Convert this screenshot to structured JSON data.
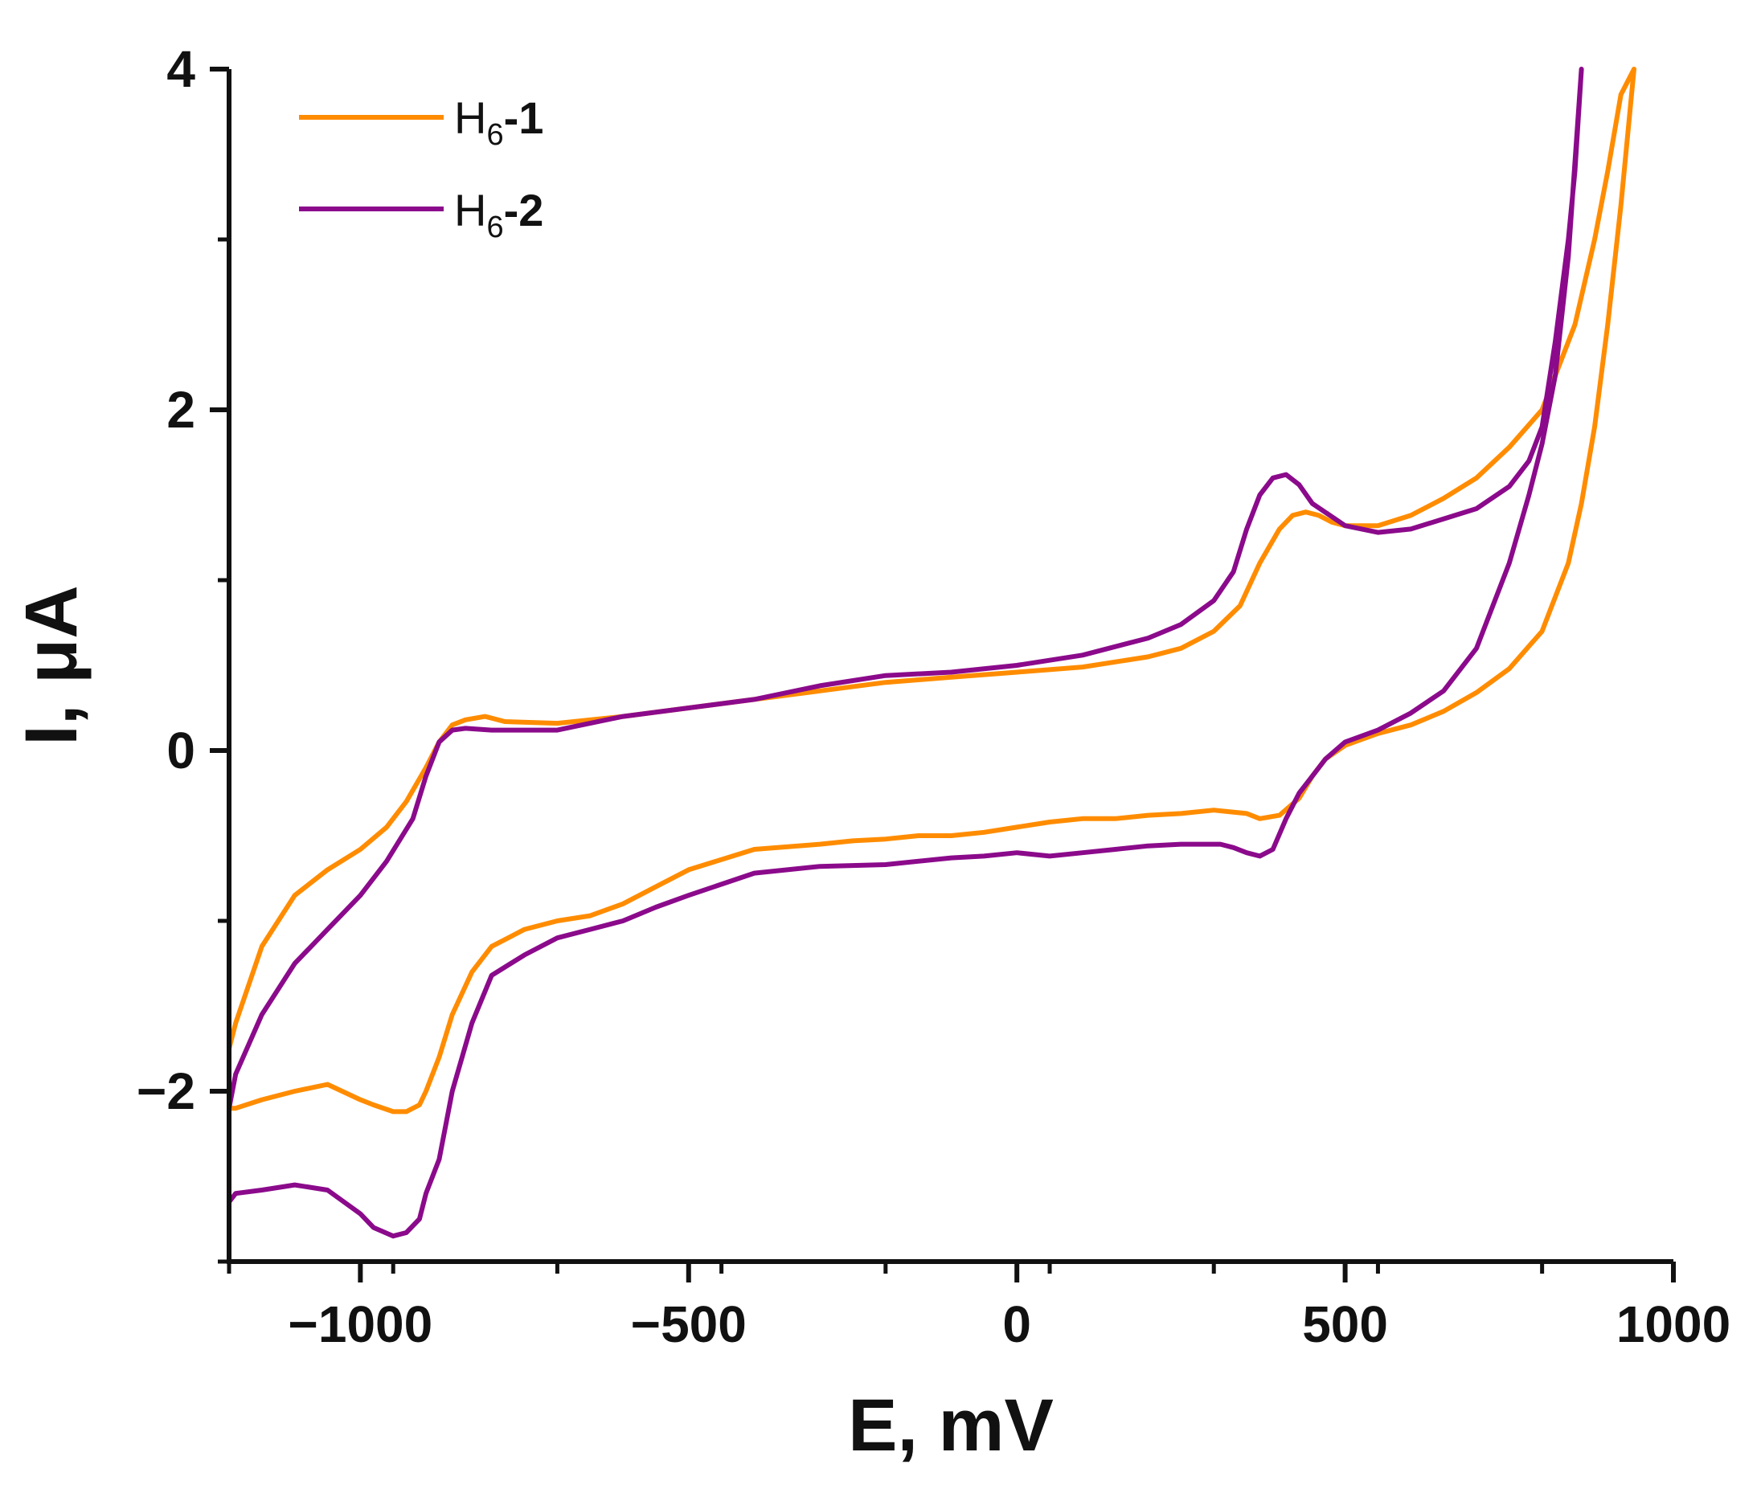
{
  "chart_data": {
    "type": "line",
    "xlabel": "E, mV",
    "ylabel_prefix": "I, ",
    "ylabel_unit": "μA",
    "xlim": [
      -1200,
      1000
    ],
    "ylim": [
      -3,
      4
    ],
    "xticks": [
      -1000,
      -500,
      0,
      500,
      1000
    ],
    "xtick_labels": [
      "−1000",
      "−500",
      "0",
      "500",
      "1000"
    ],
    "yticks": [
      -2,
      0,
      2,
      4
    ],
    "ytick_labels": [
      "−2",
      "0",
      "2",
      "4"
    ],
    "grid": false,
    "legend_position": "top-left",
    "series": [
      {
        "name": "H6-1",
        "label_main": "H",
        "label_sub": "6",
        "label_suffix": "-1",
        "color": "#FF8C00",
        "x": [
          -1200,
          -1190,
          -1150,
          -1100,
          -1050,
          -1000,
          -960,
          -930,
          -900,
          -880,
          -860,
          -840,
          -810,
          -780,
          -700,
          -600,
          -500,
          -400,
          -300,
          -200,
          -100,
          0,
          100,
          200,
          250,
          300,
          340,
          370,
          400,
          420,
          440,
          460,
          480,
          500,
          550,
          600,
          650,
          700,
          750,
          800,
          850,
          880,
          900,
          920,
          940,
          940,
          920,
          900,
          880,
          860,
          840,
          800,
          750,
          700,
          650,
          600,
          550,
          500,
          470,
          450,
          430,
          400,
          370,
          350,
          300,
          250,
          200,
          150,
          100,
          50,
          0,
          -50,
          -100,
          -150,
          -200,
          -250,
          -300,
          -400,
          -500,
          -550,
          -600,
          -650,
          -700,
          -750,
          -800,
          -830,
          -860,
          -880,
          -900,
          -910,
          -930,
          -950,
          -980,
          -1000,
          -1050,
          -1100,
          -1150,
          -1190,
          -1200
        ],
        "y": [
          -1.75,
          -1.6,
          -1.15,
          -0.85,
          -0.7,
          -0.58,
          -0.45,
          -0.3,
          -0.1,
          0.05,
          0.15,
          0.18,
          0.2,
          0.17,
          0.16,
          0.2,
          0.25,
          0.3,
          0.35,
          0.4,
          0.43,
          0.46,
          0.49,
          0.55,
          0.6,
          0.7,
          0.85,
          1.1,
          1.3,
          1.38,
          1.4,
          1.38,
          1.34,
          1.32,
          1.32,
          1.38,
          1.48,
          1.6,
          1.78,
          2.0,
          2.5,
          3.0,
          3.4,
          3.85,
          4.0,
          4.0,
          3.2,
          2.5,
          1.9,
          1.45,
          1.1,
          0.7,
          0.48,
          0.34,
          0.23,
          0.15,
          0.1,
          0.03,
          -0.05,
          -0.15,
          -0.28,
          -0.38,
          -0.4,
          -0.37,
          -0.35,
          -0.37,
          -0.38,
          -0.4,
          -0.4,
          -0.42,
          -0.45,
          -0.48,
          -0.5,
          -0.5,
          -0.52,
          -0.53,
          -0.55,
          -0.58,
          -0.7,
          -0.8,
          -0.9,
          -0.97,
          -1.0,
          -1.05,
          -1.15,
          -1.3,
          -1.55,
          -1.8,
          -2.0,
          -2.08,
          -2.12,
          -2.12,
          -2.08,
          -2.05,
          -1.96,
          -2.0,
          -2.05,
          -2.1,
          -2.1
        ]
      },
      {
        "name": "H6-2",
        "label_main": "H",
        "label_sub": "6",
        "label_suffix": "-2",
        "color": "#8B0A8B",
        "x": [
          -1200,
          -1190,
          -1150,
          -1100,
          -1050,
          -1000,
          -960,
          -920,
          -900,
          -880,
          -860,
          -840,
          -800,
          -700,
          -600,
          -500,
          -400,
          -300,
          -200,
          -100,
          0,
          100,
          200,
          250,
          300,
          330,
          350,
          370,
          390,
          410,
          430,
          450,
          500,
          550,
          600,
          650,
          700,
          750,
          780,
          800,
          820,
          840,
          850,
          860,
          860,
          840,
          820,
          800,
          780,
          750,
          700,
          650,
          600,
          550,
          500,
          470,
          450,
          430,
          410,
          390,
          370,
          350,
          330,
          310,
          290,
          250,
          200,
          150,
          100,
          50,
          0,
          -50,
          -100,
          -200,
          -300,
          -400,
          -500,
          -550,
          -600,
          -650,
          -700,
          -750,
          -800,
          -830,
          -860,
          -880,
          -900,
          -910,
          -930,
          -950,
          -980,
          -1000,
          -1050,
          -1100,
          -1150,
          -1190,
          -1200
        ],
        "y": [
          -2.1,
          -1.9,
          -1.55,
          -1.25,
          -1.05,
          -0.85,
          -0.65,
          -0.4,
          -0.15,
          0.05,
          0.12,
          0.13,
          0.12,
          0.12,
          0.2,
          0.25,
          0.3,
          0.38,
          0.44,
          0.46,
          0.5,
          0.56,
          0.66,
          0.74,
          0.88,
          1.05,
          1.3,
          1.5,
          1.6,
          1.62,
          1.56,
          1.45,
          1.32,
          1.28,
          1.3,
          1.36,
          1.42,
          1.55,
          1.7,
          1.9,
          2.4,
          3.0,
          3.4,
          4.0,
          4.0,
          2.9,
          2.2,
          1.8,
          1.5,
          1.1,
          0.6,
          0.35,
          0.22,
          0.12,
          0.05,
          -0.05,
          -0.15,
          -0.25,
          -0.4,
          -0.58,
          -0.62,
          -0.6,
          -0.57,
          -0.55,
          -0.55,
          -0.55,
          -0.56,
          -0.58,
          -0.6,
          -0.62,
          -0.6,
          -0.62,
          -0.63,
          -0.67,
          -0.68,
          -0.72,
          -0.85,
          -0.92,
          -1.0,
          -1.05,
          -1.1,
          -1.2,
          -1.32,
          -1.6,
          -2.0,
          -2.4,
          -2.6,
          -2.75,
          -2.83,
          -2.85,
          -2.8,
          -2.72,
          -2.58,
          -2.55,
          -2.58,
          -2.6,
          -2.65
        ]
      }
    ]
  }
}
